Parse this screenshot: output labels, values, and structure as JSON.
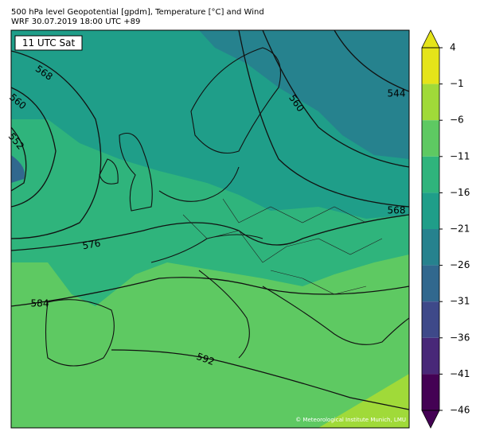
{
  "header": {
    "title": "500 hPa level Geopotential [gpdm], Temperature [°C] and Wind",
    "subtitle": "WRF 30.07.2019 18:00 UTC +89"
  },
  "time_label": "11 UTC Sat",
  "contour_labels": [
    "568",
    "560",
    "552",
    "576",
    "584",
    "592",
    "544",
    "568",
    "560"
  ],
  "colorbar": {
    "ticks": [
      4,
      {
        "value": -1,
        "label": "−1"
      },
      {
        "value": -6,
        "label": "−6"
      },
      {
        "value": -11,
        "label": "−11"
      },
      {
        "value": -16,
        "label": "−16"
      },
      {
        "value": -21,
        "label": "−21"
      },
      {
        "value": -26,
        "label": "−26"
      },
      {
        "value": -31,
        "label": "−31"
      },
      {
        "value": -36,
        "label": "−36"
      },
      {
        "value": -41,
        "label": "−41"
      },
      {
        "value": -46,
        "label": "−46"
      }
    ],
    "colors": [
      "#e5e419",
      "#a0da39",
      "#5ec962",
      "#2fb47c",
      "#1f9e89",
      "#26828e",
      "#31688e",
      "#3e4989",
      "#482878",
      "#440154"
    ]
  },
  "copyright": "© Meteorological Institute Munich, LMU"
}
